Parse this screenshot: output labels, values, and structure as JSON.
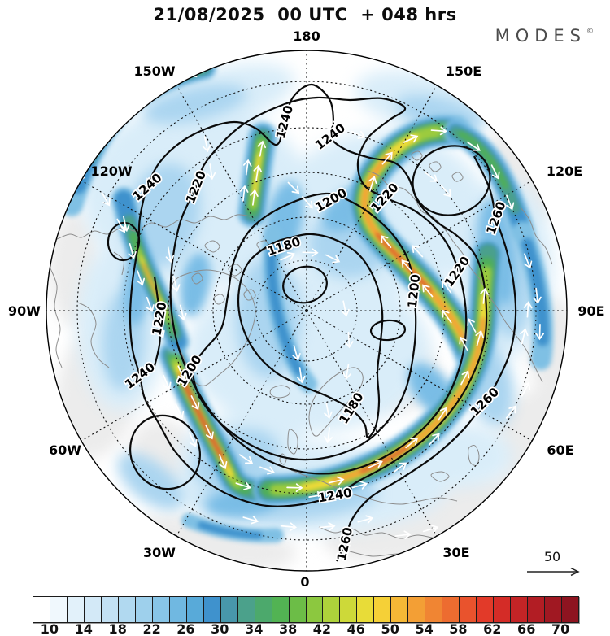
{
  "header": {
    "title": "21/08/2025  00 UTC  + 048 hrs",
    "brand": "MODES",
    "brand_mark": "©"
  },
  "map": {
    "lon_labels": {
      "deg180": "180",
      "e150": "150E",
      "e120": "120E",
      "e90": "90E",
      "e60": "60E",
      "e30": "30E",
      "deg0": "0",
      "w30": "30W",
      "w60": "60W",
      "w90": "90W",
      "w120": "120W",
      "w150": "150W"
    },
    "contour_labels": [
      "1240",
      "1220",
      "1240",
      "1240",
      "1200",
      "1220",
      "1260",
      "1220",
      "1200",
      "1180",
      "1200",
      "1240",
      "1180",
      "1260",
      "1240",
      "1260",
      "1220"
    ]
  },
  "reference_arrow": {
    "label": "50"
  },
  "colorbar": {
    "ticks": [
      "10",
      "14",
      "18",
      "22",
      "26",
      "30",
      "34",
      "38",
      "42",
      "46",
      "50",
      "54",
      "58",
      "62",
      "66",
      "70"
    ],
    "colors": [
      "#ffffff",
      "#f0f8fd",
      "#e2f1fa",
      "#d3e9f7",
      "#c3e1f4",
      "#b1d9f0",
      "#9ed0ec",
      "#88c5e7",
      "#70b8e1",
      "#58aad9",
      "#3f92cd",
      "#4897ab",
      "#4ba18b",
      "#4ca96c",
      "#52b353",
      "#6cbd47",
      "#8cc83f",
      "#aed23b",
      "#cdd939",
      "#e8dc38",
      "#f5d037",
      "#f5b836",
      "#f39f35",
      "#f08533",
      "#ed6c30",
      "#e9532d",
      "#e23a29",
      "#d42c27",
      "#c42426",
      "#b21d24",
      "#a01822",
      "#8e1420"
    ]
  },
  "chart_data": {
    "type": "heatmap",
    "title": "21/08/2025 00 UTC + 048 hrs",
    "layout": "north polar stereographic map, shaded field with black contours and white wind arrows",
    "colorbar_range": [
      8,
      72
    ],
    "colorbar_step": 2,
    "colorbar_ticks": [
      10,
      14,
      18,
      22,
      26,
      30,
      34,
      38,
      42,
      46,
      50,
      54,
      58,
      62,
      66,
      70
    ],
    "contour_values": [
      1180,
      1200,
      1220,
      1240,
      1260
    ],
    "reference_vector": 50,
    "longitude_labels": [
      "180",
      "150W",
      "150E",
      "120W",
      "120E",
      "90W",
      "90E",
      "60W",
      "60E",
      "30W",
      "30E",
      "0"
    ]
  }
}
